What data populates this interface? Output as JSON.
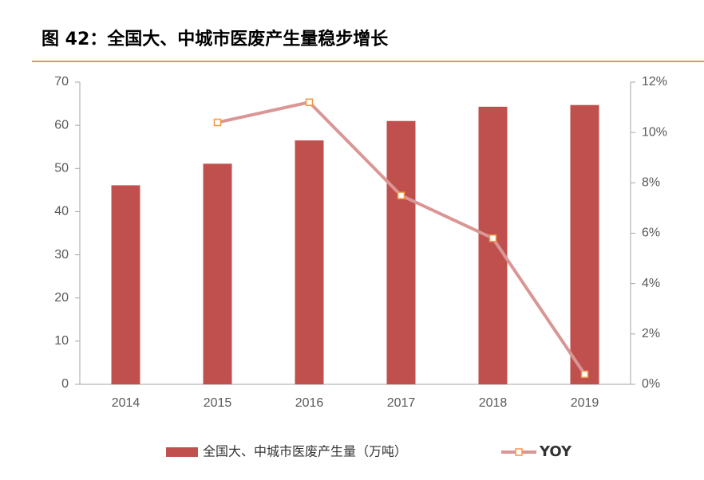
{
  "chart_data": {
    "type": "bar-line",
    "title": "图 42：全国大、中城市医废产生量稳步增长",
    "categories": [
      "2014",
      "2015",
      "2016",
      "2017",
      "2018",
      "2019"
    ],
    "series": [
      {
        "name": "全国大、中城市医废产生量（万吨）",
        "type": "bar",
        "color": "#c0504d",
        "values": [
          46.1,
          51.1,
          56.5,
          61.0,
          64.3,
          64.7
        ]
      },
      {
        "name": "YOY",
        "type": "line",
        "axis": "y2",
        "color": "#d99694",
        "marker_color": "#f79646",
        "values": [
          null,
          10.4,
          11.2,
          7.5,
          5.8,
          0.4
        ]
      }
    ],
    "ylim": [
      0,
      70
    ],
    "yticks": [
      0,
      10,
      20,
      30,
      40,
      50,
      60,
      70
    ],
    "y2lim": [
      0,
      12
    ],
    "y2ticks": [
      {
        "value": 0,
        "label": "0%"
      },
      {
        "value": 2,
        "label": "2%"
      },
      {
        "value": 4,
        "label": "4%"
      },
      {
        "value": 6,
        "label": "6%"
      },
      {
        "value": 8,
        "label": "8%"
      },
      {
        "value": 10,
        "label": "10%"
      },
      {
        "value": 12,
        "label": "12%"
      }
    ]
  }
}
